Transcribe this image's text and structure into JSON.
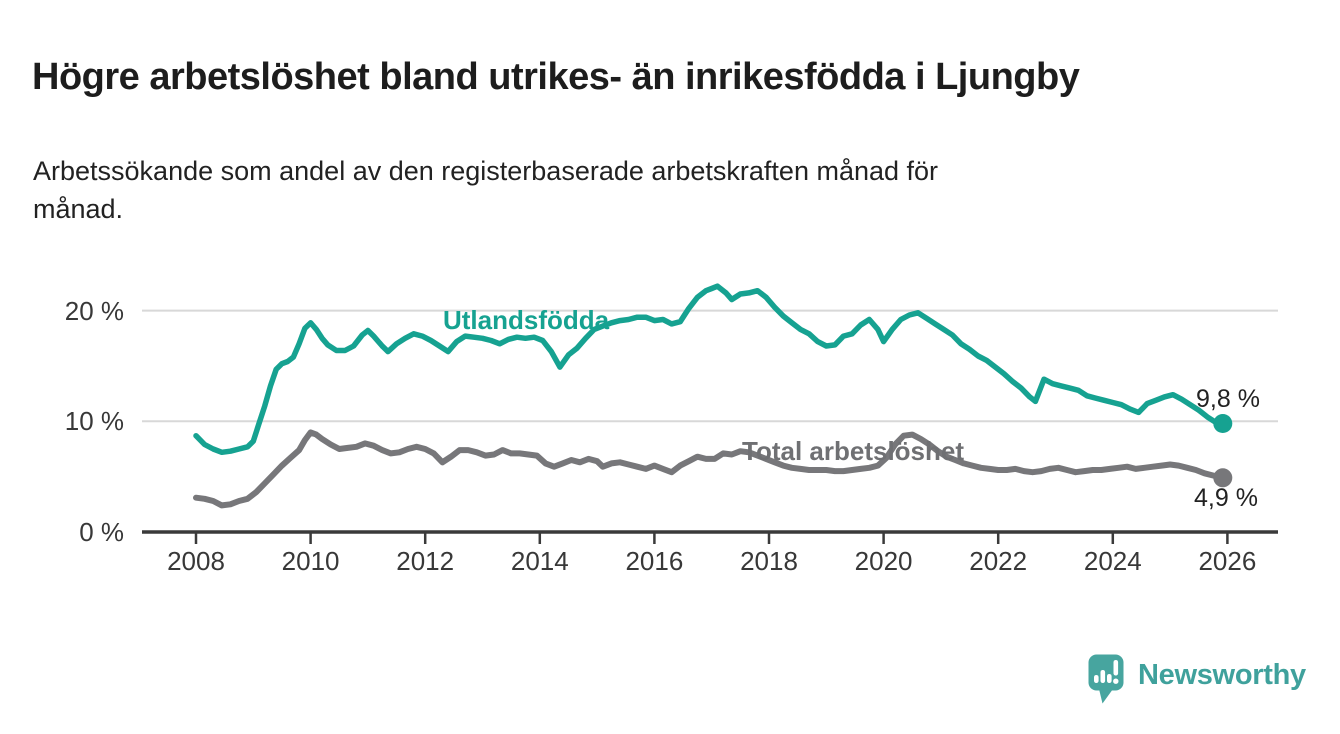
{
  "header": {
    "title": "Högre arbetslöshet bland utrikes- än inrikesfödda i Ljungby",
    "subtitle": "Arbetssökande som andel av den registerbaserade arbetskraften månad för månad.",
    "subtitle_lines": [
      "Arbetssökande som andel av den registerbaserade arbetskraften månad för",
      "månad."
    ]
  },
  "chart_data": {
    "type": "line",
    "title": "Högre arbetslöshet bland utrikes- än inrikesfödda i Ljungby",
    "subtitle": "Arbetssökande som andel av den registerbaserade arbetskraften månad för månad.",
    "unit": "%",
    "grid": "horizontal",
    "x_axis": {
      "tick_years": [
        2008,
        2010,
        2012,
        2014,
        2016,
        2018,
        2020,
        2022,
        2024,
        2026
      ],
      "range": [
        2007.8,
        2026.9
      ]
    },
    "y_axis": {
      "ticks": [
        {
          "value": 0,
          "label": "0 %"
        },
        {
          "value": 10,
          "label": "10 %"
        },
        {
          "value": 20,
          "label": "20 %"
        }
      ],
      "range": [
        0,
        23
      ]
    },
    "series": [
      {
        "name": "Utlandsfödda",
        "color": "#16a291",
        "end_label": "9,8 %",
        "end_value": 9.8,
        "points": [
          [
            2008.0,
            8.7
          ],
          [
            2008.15,
            7.9
          ],
          [
            2008.3,
            7.5
          ],
          [
            2008.45,
            7.2
          ],
          [
            2008.6,
            7.3
          ],
          [
            2008.75,
            7.5
          ],
          [
            2008.9,
            7.7
          ],
          [
            2009.0,
            8.2
          ],
          [
            2009.1,
            9.8
          ],
          [
            2009.2,
            11.4
          ],
          [
            2009.3,
            13.2
          ],
          [
            2009.4,
            14.7
          ],
          [
            2009.5,
            15.2
          ],
          [
            2009.6,
            15.4
          ],
          [
            2009.7,
            15.8
          ],
          [
            2009.8,
            17.0
          ],
          [
            2009.9,
            18.4
          ],
          [
            2010.0,
            18.9
          ],
          [
            2010.1,
            18.3
          ],
          [
            2010.2,
            17.5
          ],
          [
            2010.3,
            16.9
          ],
          [
            2010.45,
            16.4
          ],
          [
            2010.6,
            16.4
          ],
          [
            2010.75,
            16.8
          ],
          [
            2010.9,
            17.8
          ],
          [
            2011.0,
            18.2
          ],
          [
            2011.1,
            17.7
          ],
          [
            2011.25,
            16.8
          ],
          [
            2011.35,
            16.3
          ],
          [
            2011.5,
            17.0
          ],
          [
            2011.65,
            17.5
          ],
          [
            2011.8,
            17.9
          ],
          [
            2011.95,
            17.7
          ],
          [
            2012.1,
            17.3
          ],
          [
            2012.25,
            16.8
          ],
          [
            2012.4,
            16.3
          ],
          [
            2012.55,
            17.2
          ],
          [
            2012.7,
            17.7
          ],
          [
            2012.85,
            17.6
          ],
          [
            2013.0,
            17.5
          ],
          [
            2013.15,
            17.3
          ],
          [
            2013.3,
            17.0
          ],
          [
            2013.45,
            17.4
          ],
          [
            2013.6,
            17.6
          ],
          [
            2013.75,
            17.5
          ],
          [
            2013.9,
            17.6
          ],
          [
            2014.05,
            17.3
          ],
          [
            2014.2,
            16.3
          ],
          [
            2014.35,
            14.9
          ],
          [
            2014.5,
            16.0
          ],
          [
            2014.65,
            16.6
          ],
          [
            2014.8,
            17.5
          ],
          [
            2014.95,
            18.3
          ],
          [
            2015.1,
            18.6
          ],
          [
            2015.25,
            18.9
          ],
          [
            2015.4,
            19.1
          ],
          [
            2015.55,
            19.2
          ],
          [
            2015.7,
            19.4
          ],
          [
            2015.85,
            19.4
          ],
          [
            2016.0,
            19.1
          ],
          [
            2016.15,
            19.2
          ],
          [
            2016.3,
            18.8
          ],
          [
            2016.45,
            19.0
          ],
          [
            2016.6,
            20.2
          ],
          [
            2016.75,
            21.2
          ],
          [
            2016.9,
            21.8
          ],
          [
            2017.0,
            22.0
          ],
          [
            2017.1,
            22.2
          ],
          [
            2017.25,
            21.6
          ],
          [
            2017.35,
            21.0
          ],
          [
            2017.5,
            21.5
          ],
          [
            2017.65,
            21.6
          ],
          [
            2017.8,
            21.8
          ],
          [
            2017.95,
            21.2
          ],
          [
            2018.1,
            20.3
          ],
          [
            2018.25,
            19.5
          ],
          [
            2018.4,
            18.9
          ],
          [
            2018.55,
            18.3
          ],
          [
            2018.7,
            17.9
          ],
          [
            2018.85,
            17.2
          ],
          [
            2019.0,
            16.8
          ],
          [
            2019.15,
            16.9
          ],
          [
            2019.3,
            17.7
          ],
          [
            2019.45,
            17.9
          ],
          [
            2019.6,
            18.7
          ],
          [
            2019.75,
            19.2
          ],
          [
            2019.9,
            18.3
          ],
          [
            2020.0,
            17.2
          ],
          [
            2020.15,
            18.3
          ],
          [
            2020.3,
            19.2
          ],
          [
            2020.45,
            19.6
          ],
          [
            2020.6,
            19.8
          ],
          [
            2020.75,
            19.3
          ],
          [
            2020.9,
            18.8
          ],
          [
            2021.05,
            18.3
          ],
          [
            2021.2,
            17.8
          ],
          [
            2021.35,
            17.0
          ],
          [
            2021.5,
            16.5
          ],
          [
            2021.65,
            15.9
          ],
          [
            2021.8,
            15.5
          ],
          [
            2021.95,
            14.9
          ],
          [
            2022.1,
            14.3
          ],
          [
            2022.25,
            13.6
          ],
          [
            2022.4,
            13.0
          ],
          [
            2022.55,
            12.2
          ],
          [
            2022.65,
            11.8
          ],
          [
            2022.8,
            13.8
          ],
          [
            2022.95,
            13.4
          ],
          [
            2023.1,
            13.2
          ],
          [
            2023.25,
            13.0
          ],
          [
            2023.4,
            12.8
          ],
          [
            2023.55,
            12.3
          ],
          [
            2023.7,
            12.1
          ],
          [
            2023.85,
            11.9
          ],
          [
            2024.0,
            11.7
          ],
          [
            2024.15,
            11.5
          ],
          [
            2024.3,
            11.1
          ],
          [
            2024.45,
            10.8
          ],
          [
            2024.6,
            11.6
          ],
          [
            2024.75,
            11.9
          ],
          [
            2024.9,
            12.2
          ],
          [
            2025.05,
            12.4
          ],
          [
            2025.2,
            12.0
          ],
          [
            2025.35,
            11.5
          ],
          [
            2025.5,
            11.0
          ],
          [
            2025.65,
            10.4
          ],
          [
            2025.8,
            9.9
          ],
          [
            2025.92,
            9.8
          ]
        ]
      },
      {
        "name": "Total arbetslöshet",
        "color": "#77777a",
        "end_label": "4,9 %",
        "end_value": 4.9,
        "points": [
          [
            2008.0,
            3.1
          ],
          [
            2008.15,
            3.0
          ],
          [
            2008.3,
            2.8
          ],
          [
            2008.45,
            2.4
          ],
          [
            2008.6,
            2.5
          ],
          [
            2008.75,
            2.8
          ],
          [
            2008.9,
            3.0
          ],
          [
            2009.05,
            3.6
          ],
          [
            2009.2,
            4.4
          ],
          [
            2009.35,
            5.2
          ],
          [
            2009.5,
            6.0
          ],
          [
            2009.65,
            6.7
          ],
          [
            2009.8,
            7.4
          ],
          [
            2009.9,
            8.3
          ],
          [
            2010.0,
            9.0
          ],
          [
            2010.1,
            8.8
          ],
          [
            2010.2,
            8.4
          ],
          [
            2010.35,
            7.9
          ],
          [
            2010.5,
            7.5
          ],
          [
            2010.65,
            7.6
          ],
          [
            2010.8,
            7.7
          ],
          [
            2010.95,
            8.0
          ],
          [
            2011.1,
            7.8
          ],
          [
            2011.25,
            7.4
          ],
          [
            2011.4,
            7.1
          ],
          [
            2011.55,
            7.2
          ],
          [
            2011.7,
            7.5
          ],
          [
            2011.85,
            7.7
          ],
          [
            2012.0,
            7.5
          ],
          [
            2012.15,
            7.1
          ],
          [
            2012.3,
            6.3
          ],
          [
            2012.45,
            6.8
          ],
          [
            2012.6,
            7.4
          ],
          [
            2012.75,
            7.4
          ],
          [
            2012.9,
            7.2
          ],
          [
            2013.05,
            6.9
          ],
          [
            2013.2,
            7.0
          ],
          [
            2013.35,
            7.4
          ],
          [
            2013.5,
            7.1
          ],
          [
            2013.65,
            7.1
          ],
          [
            2013.8,
            7.0
          ],
          [
            2013.95,
            6.9
          ],
          [
            2014.1,
            6.2
          ],
          [
            2014.25,
            5.9
          ],
          [
            2014.4,
            6.2
          ],
          [
            2014.55,
            6.5
          ],
          [
            2014.7,
            6.3
          ],
          [
            2014.85,
            6.6
          ],
          [
            2015.0,
            6.4
          ],
          [
            2015.1,
            5.9
          ],
          [
            2015.25,
            6.2
          ],
          [
            2015.4,
            6.3
          ],
          [
            2015.55,
            6.1
          ],
          [
            2015.7,
            5.9
          ],
          [
            2015.85,
            5.7
          ],
          [
            2016.0,
            6.0
          ],
          [
            2016.15,
            5.7
          ],
          [
            2016.3,
            5.4
          ],
          [
            2016.45,
            6.0
          ],
          [
            2016.6,
            6.4
          ],
          [
            2016.75,
            6.8
          ],
          [
            2016.9,
            6.6
          ],
          [
            2017.05,
            6.6
          ],
          [
            2017.2,
            7.1
          ],
          [
            2017.35,
            7.0
          ],
          [
            2017.5,
            7.3
          ],
          [
            2017.65,
            7.2
          ],
          [
            2017.8,
            6.9
          ],
          [
            2017.95,
            6.6
          ],
          [
            2018.1,
            6.3
          ],
          [
            2018.25,
            6.0
          ],
          [
            2018.4,
            5.8
          ],
          [
            2018.55,
            5.7
          ],
          [
            2018.7,
            5.6
          ],
          [
            2018.85,
            5.6
          ],
          [
            2019.0,
            5.6
          ],
          [
            2019.15,
            5.5
          ],
          [
            2019.3,
            5.5
          ],
          [
            2019.45,
            5.6
          ],
          [
            2019.6,
            5.7
          ],
          [
            2019.75,
            5.8
          ],
          [
            2019.9,
            6.0
          ],
          [
            2020.05,
            6.7
          ],
          [
            2020.2,
            7.9
          ],
          [
            2020.35,
            8.7
          ],
          [
            2020.5,
            8.8
          ],
          [
            2020.65,
            8.4
          ],
          [
            2020.8,
            7.9
          ],
          [
            2020.95,
            7.3
          ],
          [
            2021.1,
            6.8
          ],
          [
            2021.25,
            6.5
          ],
          [
            2021.4,
            6.2
          ],
          [
            2021.55,
            6.0
          ],
          [
            2021.7,
            5.8
          ],
          [
            2021.85,
            5.7
          ],
          [
            2022.0,
            5.6
          ],
          [
            2022.15,
            5.6
          ],
          [
            2022.3,
            5.7
          ],
          [
            2022.45,
            5.5
          ],
          [
            2022.6,
            5.4
          ],
          [
            2022.75,
            5.5
          ],
          [
            2022.9,
            5.7
          ],
          [
            2023.05,
            5.8
          ],
          [
            2023.2,
            5.6
          ],
          [
            2023.35,
            5.4
          ],
          [
            2023.5,
            5.5
          ],
          [
            2023.65,
            5.6
          ],
          [
            2023.8,
            5.6
          ],
          [
            2023.95,
            5.7
          ],
          [
            2024.1,
            5.8
          ],
          [
            2024.25,
            5.9
          ],
          [
            2024.4,
            5.7
          ],
          [
            2024.55,
            5.8
          ],
          [
            2024.7,
            5.9
          ],
          [
            2024.85,
            6.0
          ],
          [
            2025.0,
            6.1
          ],
          [
            2025.15,
            6.0
          ],
          [
            2025.3,
            5.8
          ],
          [
            2025.45,
            5.6
          ],
          [
            2025.6,
            5.3
          ],
          [
            2025.75,
            5.1
          ],
          [
            2025.92,
            4.9
          ]
        ]
      }
    ],
    "legend_position": "inline-labels"
  },
  "colors": {
    "series_foreign_born": "#16a291",
    "series_total": "#77777a",
    "gridline": "#d8d8d8",
    "axis": "#3a3a3a",
    "brand_teal": "#3fa19c"
  },
  "footer": {
    "brand": "Newsworthy"
  }
}
